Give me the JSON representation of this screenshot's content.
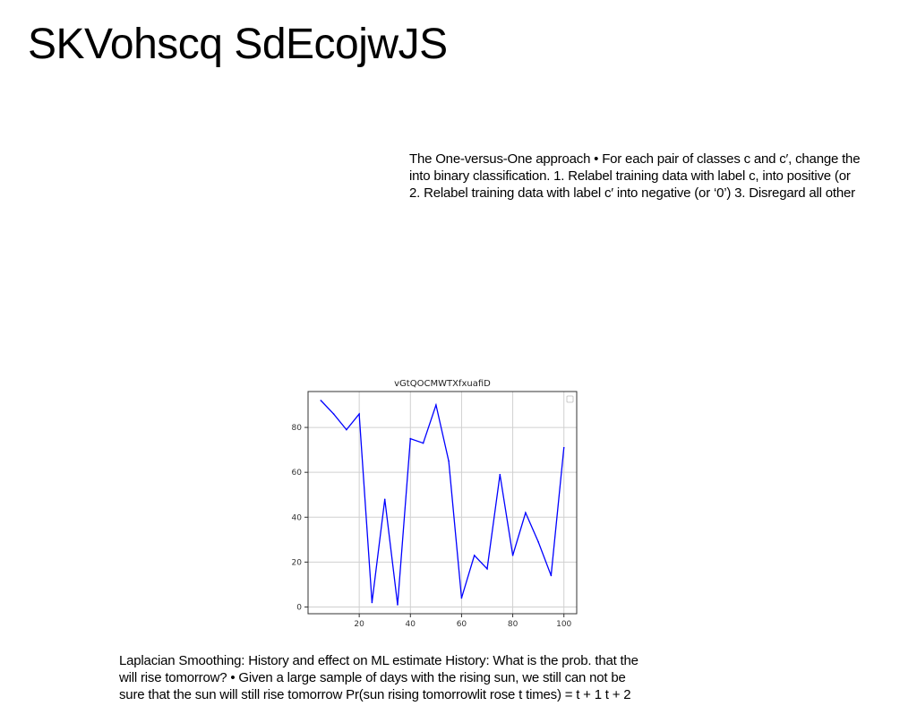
{
  "page": {
    "title": "SKVohscq SdEcojwJS"
  },
  "paragraph_top": {
    "lines": [
      "The One-versus-One approach • For each pair of classes c and c′, change the",
      "into binary classification. 1. Relabel training data with label c, into positive (or",
      "2. Relabel training data with label c′ into negative (or ‘0’) 3. Disregard all other"
    ]
  },
  "paragraph_bottom": {
    "lines": [
      "Laplacian Smoothing: History and effect on ML estimate History: What is the prob. that the",
      "will rise tomorrow? • Given a large sample of days with the rising sun, we still can not be",
      "sure that the sun will still rise tomorrow Pr(sun rising tomorrowlit rose t times) = t + 1 t + 2"
    ]
  },
  "chart_data": {
    "type": "line",
    "title": "vGtQOCMWTXfxuafiD",
    "xlabel": "",
    "ylabel": "",
    "xlim": [
      0,
      105
    ],
    "ylim": [
      -3,
      96
    ],
    "grid": true,
    "legend": "top-right (empty)",
    "x_ticks": [
      20,
      40,
      60,
      80,
      100
    ],
    "y_ticks": [
      0,
      20,
      40,
      60,
      80
    ],
    "series": [
      {
        "color": "#0000ff",
        "x": [
          5,
          10,
          15,
          20,
          25,
          30,
          35,
          40,
          45,
          50,
          55,
          60,
          65,
          70,
          75,
          80,
          85,
          90,
          95,
          100
        ],
        "values": [
          92,
          86,
          79,
          86,
          2,
          48,
          1,
          75,
          73,
          90,
          65,
          4,
          23,
          17,
          59,
          23,
          42,
          29,
          14,
          71
        ]
      }
    ]
  }
}
